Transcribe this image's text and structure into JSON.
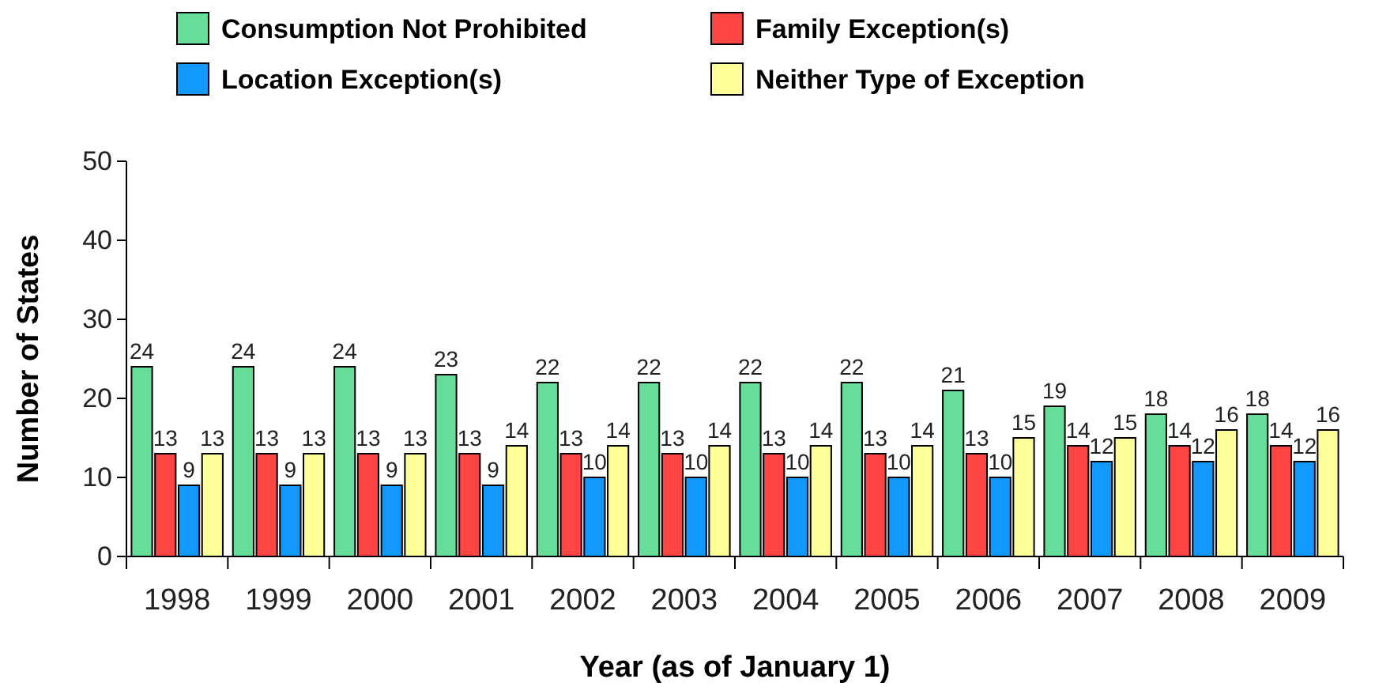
{
  "chart_data": {
    "type": "bar",
    "xlabel": "Year (as of January 1)",
    "ylabel": "Number of States",
    "categories": [
      "1998",
      "1999",
      "2000",
      "2001",
      "2002",
      "2003",
      "2004",
      "2005",
      "2006",
      "2007",
      "2008",
      "2009"
    ],
    "series": [
      {
        "name": "Consumption Not Prohibited",
        "color": "#66dd99",
        "values": [
          24,
          24,
          24,
          23,
          22,
          22,
          22,
          22,
          21,
          19,
          18,
          18
        ]
      },
      {
        "name": "Family Exception(s)",
        "color": "#ff4444",
        "values": [
          13,
          13,
          13,
          13,
          13,
          13,
          13,
          13,
          13,
          14,
          14,
          14
        ]
      },
      {
        "name": "Location Exception(s)",
        "color": "#1199ff",
        "values": [
          9,
          9,
          9,
          9,
          10,
          10,
          10,
          10,
          10,
          12,
          12,
          12
        ]
      },
      {
        "name": "Neither Type of Exception",
        "color": "#ffff99",
        "values": [
          13,
          13,
          13,
          14,
          14,
          14,
          14,
          14,
          15,
          15,
          16,
          16
        ]
      }
    ],
    "ylim": [
      0,
      50
    ],
    "yticks": [
      0,
      10,
      20,
      30,
      40,
      50
    ],
    "grid": false,
    "legend": "top",
    "data_labels": true
  }
}
